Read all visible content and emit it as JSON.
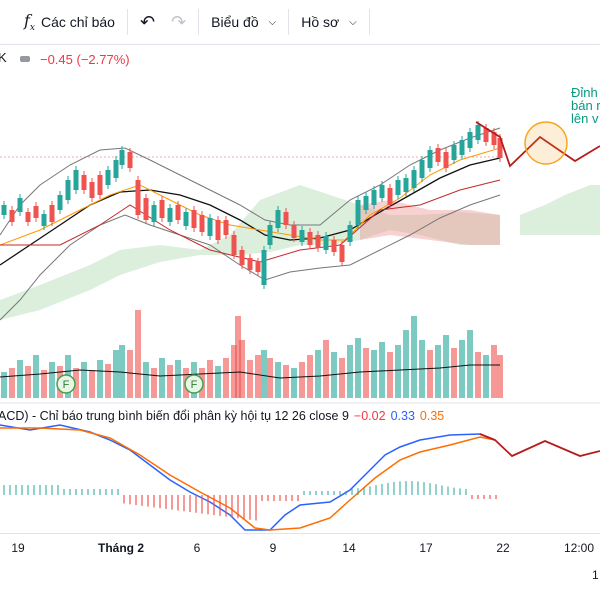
{
  "toolbar": {
    "indicators_label": "Các chỉ báo",
    "chart_label": "Biểu đồ",
    "profile_label": "Hồ sơ"
  },
  "symbol": {
    "suffix": "K",
    "change": "−0.45 (−2.77%)"
  },
  "annotation": {
    "line1": "Đỉnh",
    "line2": "bán r",
    "line3": "lên v"
  },
  "macd_legend": {
    "title": "ACD) - Chỉ báo trung bình biến đổi phân kỳ hội tụ 12 26 close 9",
    "histogram": "−0.02",
    "macd": "0.33",
    "signal": "0.35"
  },
  "xaxis": {
    "labels": [
      "19",
      "Tháng 2",
      "6",
      "9",
      "14",
      "17",
      "22",
      "12:00"
    ],
    "bottom_label": "1"
  },
  "colors": {
    "up": "#26a69a",
    "down": "#ef5350",
    "macd": "#2962ff",
    "signal": "#ff6d00",
    "projection": "#b71c1c",
    "cloud_green": "#a5d6a7",
    "cloud_red": "#ef9a9a",
    "circle": "#f5a623"
  }
}
